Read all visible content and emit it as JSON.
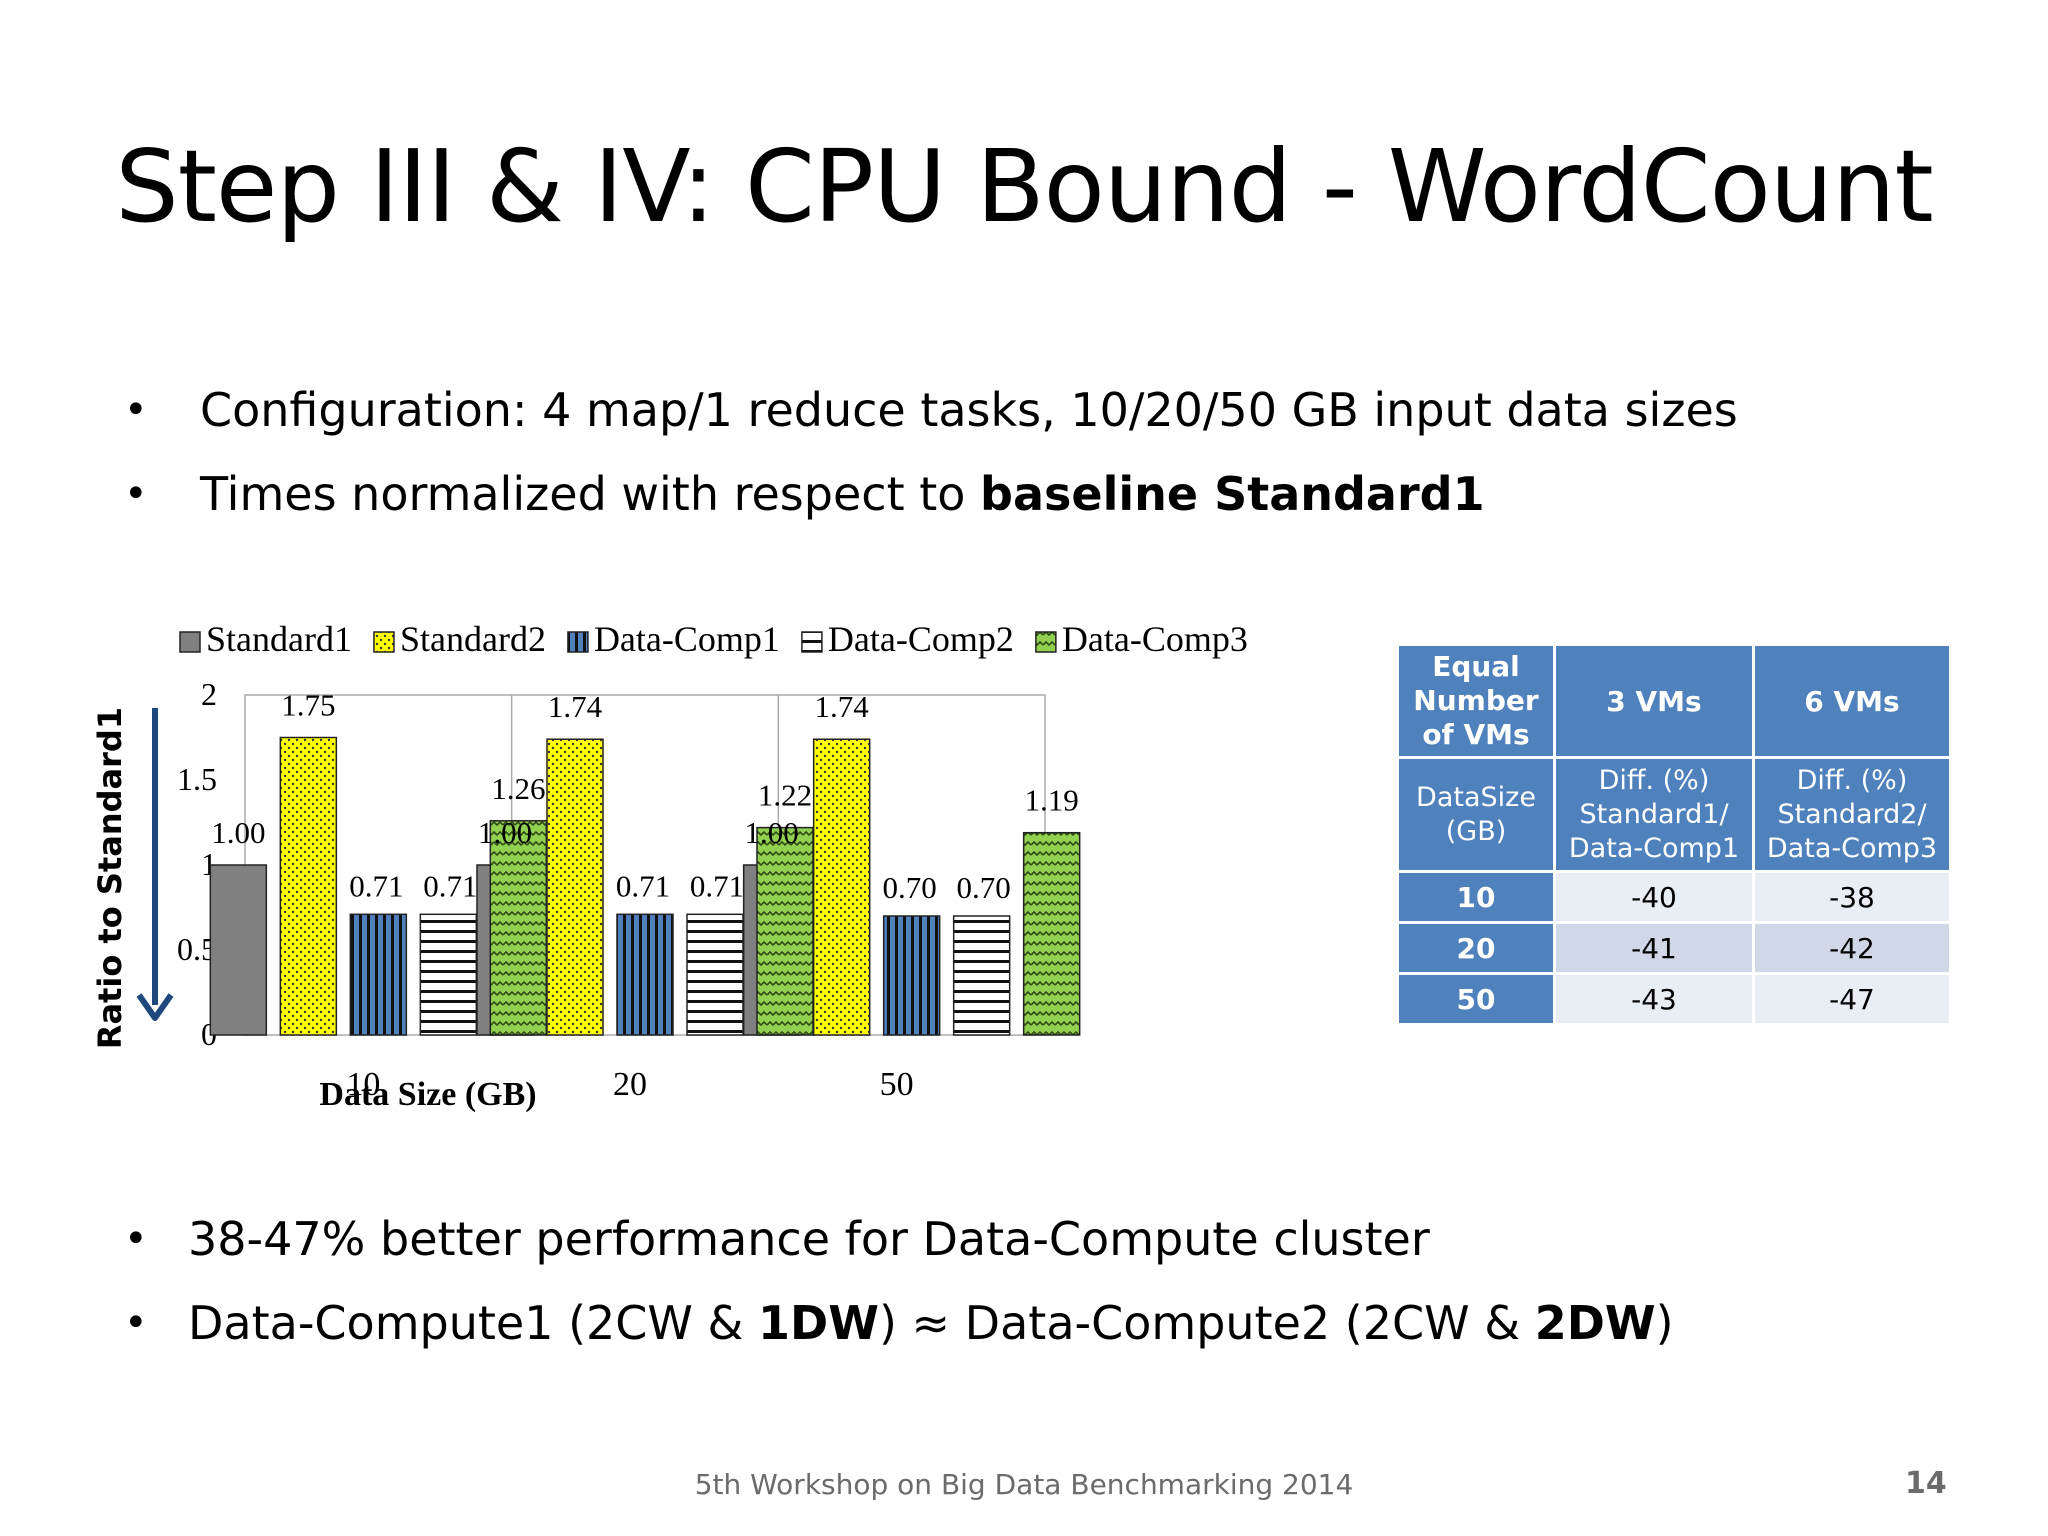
{
  "slide": {
    "title": "Step III & IV: CPU Bound - WordCount",
    "bullets_top": [
      {
        "text": "Configuration: 4 map/1 reduce tasks, 10/20/50 GB input data sizes",
        "bold": ""
      },
      {
        "text": "Times normalized with respect to ",
        "bold": "baseline Standard1"
      }
    ],
    "bullets_bottom": {
      "first": "38-47% better performance for Data-Compute cluster",
      "second": {
        "p1": "Data-Compute1 (2CW & ",
        "b1": "1DW",
        "p2": ") ≈ Data-Compute2 (2CW & ",
        "b2": "2DW",
        "p3": ")"
      }
    },
    "footer": "5th Workshop on Big Data Benchmarking 2014",
    "page_number": "14"
  },
  "chart_data": {
    "type": "bar",
    "categories": [
      "10",
      "20",
      "50"
    ],
    "xlabel": "Data Size (GB)",
    "ylabel": "Ratio to Standard1",
    "ylim": [
      0,
      2
    ],
    "yticks": [
      "0",
      "0.5",
      "1",
      "1.5",
      "2"
    ],
    "legend_position": "top",
    "grid": false,
    "series": [
      {
        "name": "Standard1",
        "values": [
          1.0,
          1.0,
          1.0
        ],
        "labels": [
          "1.00",
          "1.00",
          "1.00"
        ],
        "pattern": "solid-gray",
        "color": "#808080"
      },
      {
        "name": "Standard2",
        "values": [
          1.75,
          1.74,
          1.74
        ],
        "labels": [
          "1.75",
          "1.74",
          "1.74"
        ],
        "pattern": "dots-yellow",
        "color": "#ffff00"
      },
      {
        "name": "Data-Comp1",
        "values": [
          0.71,
          0.71,
          0.7
        ],
        "labels": [
          "0.71",
          "0.71",
          "0.70"
        ],
        "pattern": "vertical-blue",
        "color": "#4f81bd"
      },
      {
        "name": "Data-Comp2",
        "values": [
          0.71,
          0.71,
          0.7
        ],
        "labels": [
          "0.71",
          "0.71",
          "0.70"
        ],
        "pattern": "horizontal-white",
        "color": "#ffffff"
      },
      {
        "name": "Data-Comp3",
        "values": [
          1.26,
          1.22,
          1.19
        ],
        "labels": [
          "1.26",
          "1.22",
          "1.19"
        ],
        "pattern": "waves-green",
        "color": "#92d050"
      }
    ],
    "arrow_color": "#1f497d"
  },
  "diff_table": {
    "header": {
      "col0": "Equal Number of VMs",
      "col1": "3 VMs",
      "col2": "6 VMs"
    },
    "subheader": {
      "col0": "DataSize (GB)",
      "col1": "Diff. (%) Standard1/ Data-Comp1",
      "col2": "Diff. (%) Standard2/ Data-Comp3"
    },
    "rows": [
      {
        "size": "10",
        "v3": "-40",
        "v6": "-38"
      },
      {
        "size": "20",
        "v3": "-41",
        "v6": "-42"
      },
      {
        "size": "50",
        "v3": "-43",
        "v6": "-47"
      }
    ],
    "header_color": "#4f81bd"
  }
}
